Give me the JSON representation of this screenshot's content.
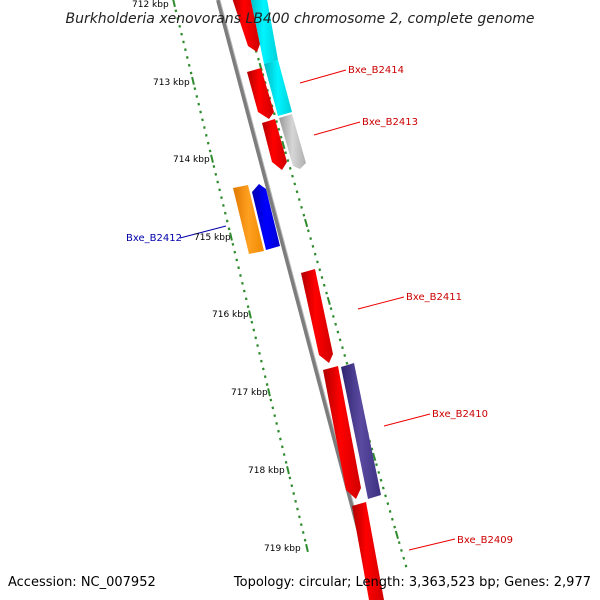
{
  "header": {
    "title": "Burkholderia xenovorans LB400 chromosome 2, complete genome"
  },
  "footer": {
    "accession": "Accession: NC_007952",
    "summary": "Topology: circular; Length: 3,363,523 bp; Genes: 2,977"
  },
  "colors": {
    "axis": "#8f8f8f",
    "tick": "#2e8b2e",
    "forward_gene": "#ff0000",
    "cyan_gene": "#00e8ee",
    "gray_gene": "#bdbdbd",
    "orange_gene": "#ff9900",
    "blue_gene": "#0000ff",
    "purple_gene": "#4a3c8c",
    "label_red": "#cc0000",
    "label_blue": "#0000aa"
  },
  "scale": {
    "ticks": [
      "712 kbp",
      "713 kbp",
      "714 kbp",
      "715 kbp",
      "716 kbp",
      "717 kbp",
      "718 kbp",
      "719 kbp"
    ]
  },
  "gene_labels": [
    "Bxe_B2414",
    "Bxe_B2413",
    "Bxe_B2412",
    "Bxe_B2411",
    "Bxe_B2410",
    "Bxe_B2409"
  ]
}
